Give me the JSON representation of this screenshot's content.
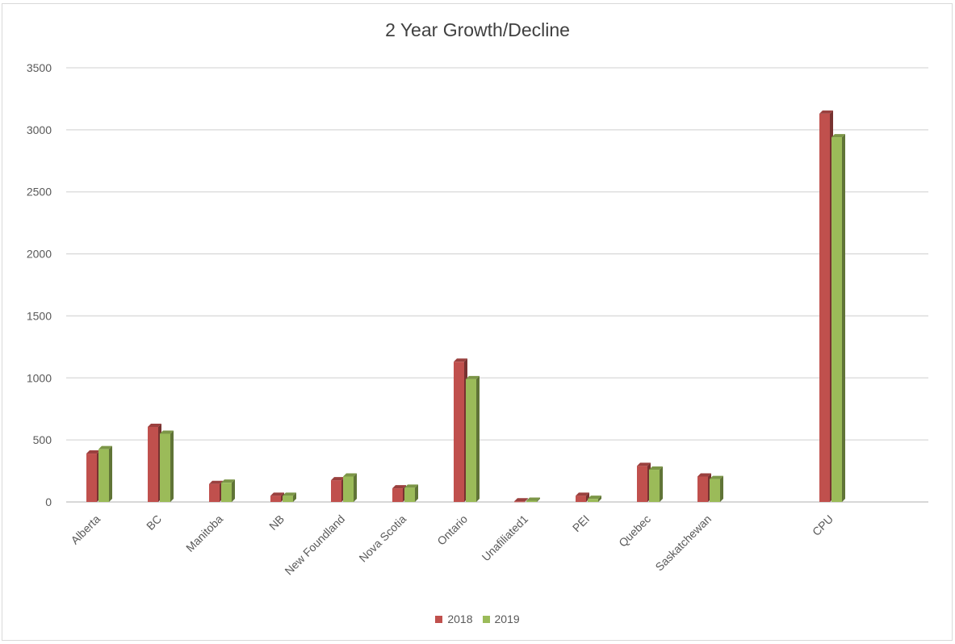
{
  "chart_data": {
    "type": "bar",
    "title": "2 Year Growth/Decline",
    "xlabel": "",
    "ylabel": "",
    "ylim": [
      0,
      3500
    ],
    "yticks": [
      0,
      500,
      1000,
      1500,
      2000,
      2500,
      3000,
      3500
    ],
    "grid": true,
    "legend_position": "bottom",
    "categories": [
      "Alberta",
      "BC",
      "Manitoba",
      "NB",
      "New Foundland",
      "Nova Scotia",
      "Ontario",
      "Unafiliated1",
      "PEI",
      "Quebec",
      "Saskatchewan",
      "CPU"
    ],
    "series": [
      {
        "name": "2018",
        "color": "#c0504d",
        "values": [
          390,
          605,
          145,
          50,
          175,
          110,
          1130,
          5,
          50,
          290,
          205,
          3130
        ]
      },
      {
        "name": "2019",
        "color": "#9bbb59",
        "values": [
          425,
          550,
          155,
          50,
          205,
          115,
          990,
          10,
          25,
          260,
          185,
          2940
        ]
      }
    ]
  }
}
